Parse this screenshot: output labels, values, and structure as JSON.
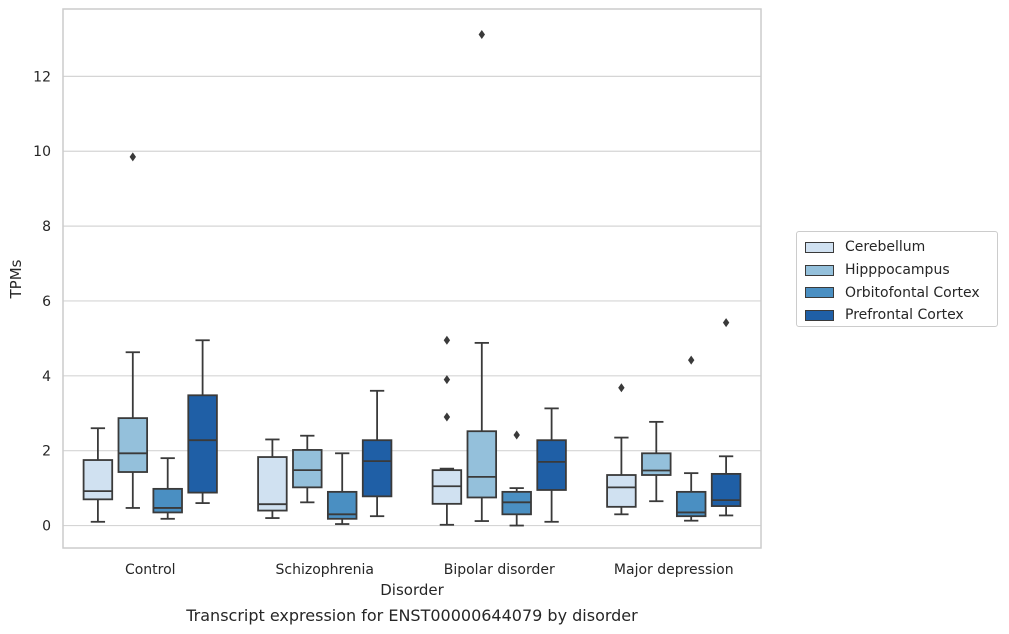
{
  "caption": "Transcript expression for ENST00000644079 by disorder",
  "chart_data": {
    "type": "boxplot",
    "xlabel": "Disorder",
    "ylabel": "TPMs",
    "ylim": [
      -0.6,
      13.8
    ],
    "yticks": [
      0,
      2,
      4,
      6,
      8,
      10,
      12
    ],
    "grid": "horizontal",
    "legend_position": "right",
    "categories": [
      "Control",
      "Schizophrenia",
      "Bipolar disorder",
      "Major depression"
    ],
    "series": [
      {
        "name": "Cerebellum",
        "color": "#d0e1f1",
        "boxes": [
          {
            "whislo": 0.1,
            "q1": 0.7,
            "med": 0.92,
            "q3": 1.75,
            "whishi": 2.6,
            "fliers": []
          },
          {
            "whislo": 0.2,
            "q1": 0.4,
            "med": 0.57,
            "q3": 1.83,
            "whishi": 2.3,
            "fliers": []
          },
          {
            "whislo": 0.02,
            "q1": 0.58,
            "med": 1.05,
            "q3": 1.48,
            "whishi": 1.52,
            "fliers": [
              2.9,
              3.9,
              4.95
            ]
          },
          {
            "whislo": 0.3,
            "q1": 0.5,
            "med": 1.02,
            "q3": 1.35,
            "whishi": 2.35,
            "fliers": [
              3.68
            ]
          }
        ]
      },
      {
        "name": "Hipppocampus",
        "color": "#94c0db",
        "boxes": [
          {
            "whislo": 0.47,
            "q1": 1.43,
            "med": 1.93,
            "q3": 2.87,
            "whishi": 4.63,
            "fliers": [
              9.85
            ]
          },
          {
            "whislo": 0.62,
            "q1": 1.02,
            "med": 1.48,
            "q3": 2.02,
            "whishi": 2.4,
            "fliers": []
          },
          {
            "whislo": 0.12,
            "q1": 0.75,
            "med": 1.3,
            "q3": 2.52,
            "whishi": 4.88,
            "fliers": [
              13.12
            ]
          },
          {
            "whislo": 0.65,
            "q1": 1.35,
            "med": 1.47,
            "q3": 1.93,
            "whishi": 2.77,
            "fliers": []
          }
        ]
      },
      {
        "name": "Orbitofontal Cortex",
        "color": "#4a8fc2",
        "boxes": [
          {
            "whislo": 0.18,
            "q1": 0.35,
            "med": 0.47,
            "q3": 0.98,
            "whishi": 1.8,
            "fliers": []
          },
          {
            "whislo": 0.04,
            "q1": 0.18,
            "med": 0.3,
            "q3": 0.9,
            "whishi": 1.93,
            "fliers": []
          },
          {
            "whislo": 0.0,
            "q1": 0.3,
            "med": 0.62,
            "q3": 0.9,
            "whishi": 1.0,
            "fliers": [
              2.42
            ]
          },
          {
            "whislo": 0.13,
            "q1": 0.25,
            "med": 0.35,
            "q3": 0.9,
            "whishi": 1.4,
            "fliers": [
              4.42
            ]
          }
        ]
      },
      {
        "name": "Prefrontal Cortex",
        "color": "#1f5fa6",
        "boxes": [
          {
            "whislo": 0.6,
            "q1": 0.88,
            "med": 2.28,
            "q3": 3.48,
            "whishi": 4.95,
            "fliers": []
          },
          {
            "whislo": 0.25,
            "q1": 0.78,
            "med": 1.72,
            "q3": 2.28,
            "whishi": 3.6,
            "fliers": []
          },
          {
            "whislo": 0.1,
            "q1": 0.95,
            "med": 1.7,
            "q3": 2.28,
            "whishi": 3.13,
            "fliers": []
          },
          {
            "whislo": 0.27,
            "q1": 0.52,
            "med": 0.68,
            "q3": 1.38,
            "whishi": 1.85,
            "fliers": [
              5.42
            ]
          }
        ]
      }
    ]
  }
}
